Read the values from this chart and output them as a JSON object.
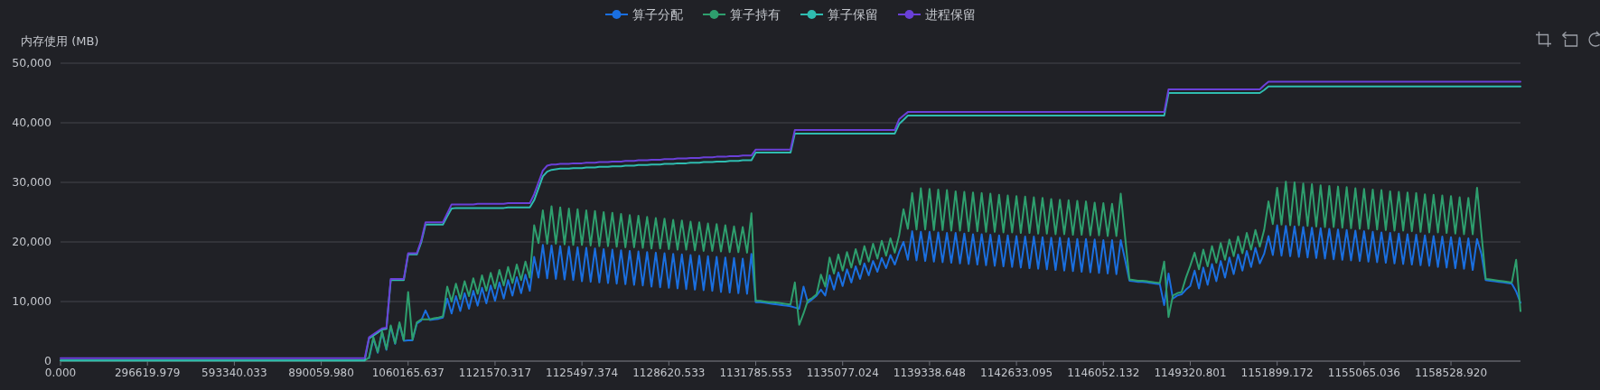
{
  "chart_data": {
    "type": "line",
    "ylabel": "内存使用 (MB)",
    "ylim": [
      0,
      50000
    ],
    "yticks": [
      0,
      {
        "value": 10000,
        "label": "10,000"
      },
      {
        "value": 20000,
        "label": "20,000"
      },
      {
        "value": 30000,
        "label": "30,000"
      },
      {
        "value": 40000,
        "label": "40,000"
      },
      {
        "value": 50000,
        "label": "50,000"
      }
    ],
    "grid": "y",
    "legend": "top",
    "categories": [
      "0.000",
      null,
      null,
      null,
      null,
      null,
      null,
      null,
      null,
      null,
      null,
      null,
      null,
      null,
      null,
      null,
      null,
      null,
      null,
      null,
      "296619.979",
      null,
      null,
      null,
      null,
      null,
      null,
      null,
      null,
      null,
      null,
      null,
      null,
      null,
      null,
      null,
      null,
      null,
      null,
      null,
      "593340.033",
      null,
      null,
      null,
      null,
      null,
      null,
      null,
      null,
      null,
      null,
      null,
      null,
      null,
      null,
      null,
      null,
      null,
      null,
      null,
      "890059.980",
      null,
      null,
      null,
      null,
      null,
      null,
      null,
      null,
      null,
      null,
      null,
      null,
      null,
      null,
      null,
      null,
      null,
      null,
      null,
      "1060165.637",
      null,
      null,
      null,
      null,
      null,
      null,
      null,
      null,
      null,
      null,
      null,
      null,
      null,
      null,
      null,
      null,
      null,
      null,
      null,
      "1121570.317",
      null,
      null,
      null,
      null,
      null,
      null,
      null,
      null,
      null,
      null,
      null,
      null,
      null,
      null,
      null,
      null,
      null,
      null,
      null,
      "1125497.374",
      null,
      null,
      null,
      null,
      null,
      null,
      null,
      null,
      null,
      null,
      null,
      null,
      null,
      null,
      null,
      null,
      null,
      null,
      null,
      "1128620.533",
      null,
      null,
      null,
      null,
      null,
      null,
      null,
      null,
      null,
      null,
      null,
      null,
      null,
      null,
      null,
      null,
      null,
      null,
      null,
      "1131785.553",
      null,
      null,
      null,
      null,
      null,
      null,
      null,
      null,
      null,
      null,
      null,
      null,
      null,
      null,
      null,
      null,
      null,
      null,
      null,
      "1135077.024",
      null,
      null,
      null,
      null,
      null,
      null,
      null,
      null,
      null,
      null,
      null,
      null,
      null,
      null,
      null,
      null,
      null,
      null,
      null,
      "1139338.648",
      null,
      null,
      null,
      null,
      null,
      null,
      null,
      null,
      null,
      null,
      null,
      null,
      null,
      null,
      null,
      null,
      null,
      null,
      null,
      "1142633.095",
      null,
      null,
      null,
      null,
      null,
      null,
      null,
      null,
      null,
      null,
      null,
      null,
      null,
      null,
      null,
      null,
      null,
      null,
      null,
      "1146052.132",
      null,
      null,
      null,
      null,
      null,
      null,
      null,
      null,
      null,
      null,
      null,
      null,
      null,
      null,
      null,
      null,
      null,
      null,
      null,
      "1149320.801",
      null,
      null,
      null,
      null,
      null,
      null,
      null,
      null,
      null,
      null,
      null,
      null,
      null,
      null,
      null,
      null,
      null,
      null,
      null,
      "1151899.172",
      null,
      null,
      null,
      null,
      null,
      null,
      null,
      null,
      null,
      null,
      null,
      null,
      null,
      null,
      null,
      null,
      null,
      null,
      null,
      "1155065.036",
      null,
      null,
      null,
      null,
      null,
      null,
      null,
      null,
      null,
      null,
      null,
      null,
      null,
      null,
      null,
      null,
      null,
      null,
      null,
      "1158528.920",
      null,
      null,
      null,
      null,
      null,
      null,
      null,
      null,
      null,
      null,
      null,
      null,
      null,
      null,
      null,
      null
    ],
    "series": [
      {
        "name": "算子分配",
        "color": "#1a6fe0",
        "values": [
          null,
          null,
          null,
          null,
          null,
          null,
          null,
          null,
          null,
          null,
          null,
          null,
          null,
          null,
          null,
          null,
          null,
          null,
          null,
          null,
          null,
          null,
          null,
          null,
          null,
          null,
          null,
          null,
          null,
          null,
          null,
          null,
          null,
          null,
          null,
          null,
          null,
          null,
          null,
          null,
          null,
          null,
          null,
          null,
          null,
          null,
          null,
          null,
          null,
          null,
          null,
          null,
          null,
          null,
          null,
          null,
          null,
          null,
          null,
          null,
          null,
          null,
          null,
          null,
          null,
          null,
          null,
          null,
          null,
          null,
          null,
          500,
          3800,
          1400,
          4800,
          1900,
          5800,
          2900,
          6300,
          3400,
          3500,
          3500,
          6300,
          6800,
          8500,
          6900,
          7000,
          7100,
          7300,
          10500,
          8000,
          10900,
          8400,
          11400,
          8800,
          11800,
          9300,
          12300,
          9700,
          12700,
          10100,
          13200,
          10500,
          13600,
          11000,
          14100,
          11400,
          14500,
          11800,
          17500,
          14000,
          19500,
          13900,
          19400,
          13800,
          19300,
          13700,
          19200,
          13600,
          19100,
          13400,
          19000,
          13300,
          18900,
          13200,
          18800,
          13100,
          18700,
          13000,
          18600,
          12900,
          18500,
          12800,
          18400,
          12700,
          18300,
          12500,
          18200,
          12400,
          18100,
          12300,
          18000,
          12200,
          17900,
          12100,
          17800,
          12000,
          17700,
          11900,
          17600,
          11800,
          17500,
          11600,
          17400,
          11500,
          17300,
          11400,
          17200,
          11300,
          18000,
          9900,
          9900,
          9800,
          9700,
          9600,
          9500,
          9400,
          9300,
          9200,
          9000,
          8800,
          12500,
          9800,
          10400,
          11000,
          12000,
          11000,
          14400,
          12000,
          14900,
          12600,
          15400,
          13200,
          15900,
          13800,
          16400,
          14400,
          16800,
          15000,
          17300,
          15600,
          17800,
          16200,
          18300,
          20000,
          17000,
          21800,
          16900,
          21700,
          16800,
          21700,
          16700,
          21600,
          16600,
          21500,
          16500,
          21500,
          16400,
          21400,
          16300,
          21300,
          16200,
          21300,
          16100,
          21200,
          16000,
          21100,
          15900,
          21100,
          15800,
          21000,
          15700,
          20900,
          15600,
          20900,
          15500,
          20800,
          15400,
          20700,
          15300,
          20700,
          15200,
          20600,
          15100,
          20500,
          15000,
          20500,
          14900,
          20400,
          14800,
          20300,
          14700,
          20300,
          14600,
          20300,
          17000,
          13500,
          13400,
          13300,
          13300,
          13200,
          13100,
          13000,
          12900,
          9400,
          14700,
          10500,
          11000,
          11200,
          12000,
          12600,
          15200,
          12200,
          15700,
          12800,
          16300,
          13400,
          16800,
          14000,
          17400,
          14600,
          17900,
          15200,
          18500,
          15800,
          19000,
          16400,
          18000,
          21000,
          17800,
          22800,
          17700,
          22700,
          17600,
          22600,
          17500,
          22500,
          17400,
          22400,
          17300,
          22300,
          17200,
          22200,
          17100,
          22100,
          17000,
          22000,
          16900,
          21900,
          16800,
          21800,
          16700,
          21700,
          16600,
          21600,
          16500,
          21500,
          16400,
          21400,
          16300,
          21300,
          16200,
          21200,
          16100,
          21100,
          16000,
          21000,
          15800,
          20900,
          15700,
          20800,
          15600,
          20700,
          15500,
          20600,
          15300,
          20500,
          18000,
          13600,
          13500,
          13400,
          13300,
          13200,
          13100,
          13000,
          11700,
          9800
        ]
      },
      {
        "name": "算子持有",
        "color": "#2e9f6e",
        "values": [
          100,
          100,
          100,
          100,
          100,
          100,
          100,
          100,
          100,
          100,
          100,
          100,
          100,
          100,
          100,
          100,
          100,
          100,
          100,
          100,
          100,
          100,
          100,
          100,
          100,
          100,
          100,
          100,
          100,
          100,
          100,
          100,
          100,
          100,
          100,
          100,
          100,
          100,
          100,
          100,
          100,
          100,
          100,
          100,
          100,
          100,
          100,
          100,
          100,
          100,
          100,
          100,
          100,
          100,
          100,
          100,
          100,
          100,
          100,
          100,
          100,
          100,
          100,
          100,
          100,
          100,
          100,
          100,
          100,
          100,
          100,
          600,
          4000,
          1500,
          5000,
          2000,
          6000,
          3000,
          6500,
          3500,
          11600,
          3600,
          6500,
          7000,
          7000,
          7000,
          7200,
          7300,
          7500,
          12500,
          10000,
          13000,
          10400,
          13400,
          10900,
          13900,
          11300,
          14400,
          11800,
          14800,
          12200,
          15300,
          12700,
          15800,
          13100,
          16200,
          13600,
          16700,
          14000,
          22800,
          19800,
          25300,
          19700,
          26000,
          19700,
          25800,
          19600,
          25600,
          19500,
          25500,
          19500,
          25300,
          19400,
          25200,
          19300,
          25000,
          19300,
          24900,
          19200,
          24700,
          19100,
          24500,
          19100,
          24400,
          19000,
          24200,
          18900,
          24000,
          18900,
          23900,
          18800,
          23700,
          18700,
          23600,
          18700,
          23400,
          18600,
          23300,
          18500,
          23100,
          18500,
          23000,
          18400,
          22800,
          18300,
          22600,
          18300,
          22500,
          18200,
          24800,
          10100,
          10100,
          10000,
          9900,
          9900,
          9800,
          9700,
          9600,
          9500,
          13200,
          6100,
          8000,
          10200,
          10600,
          11200,
          14500,
          12500,
          17400,
          14700,
          17900,
          15200,
          18300,
          15700,
          18800,
          16200,
          19300,
          16700,
          19700,
          17200,
          20200,
          17700,
          20600,
          18200,
          21100,
          25500,
          22200,
          28200,
          22100,
          29000,
          22100,
          28900,
          22000,
          28800,
          22000,
          28700,
          21900,
          28500,
          21900,
          28400,
          21800,
          28300,
          21800,
          28200,
          21700,
          28100,
          21700,
          27900,
          21600,
          27800,
          21600,
          27700,
          21500,
          27600,
          21500,
          27500,
          21400,
          27400,
          21400,
          27200,
          21300,
          27100,
          21300,
          27000,
          21200,
          26900,
          21200,
          26800,
          21100,
          26600,
          21100,
          26500,
          21000,
          26400,
          21000,
          28100,
          20900,
          13700,
          13600,
          13500,
          13500,
          13400,
          13300,
          13200,
          13100,
          16700,
          7400,
          11000,
          11400,
          11600,
          14000,
          16000,
          18200,
          15400,
          18700,
          15900,
          19300,
          16500,
          19800,
          17000,
          20400,
          17600,
          20900,
          18100,
          21500,
          18700,
          22000,
          19200,
          22000,
          26800,
          23000,
          29100,
          22900,
          30100,
          22800,
          30000,
          22800,
          29800,
          22700,
          29700,
          22600,
          29500,
          22500,
          29400,
          22500,
          29300,
          22400,
          29200,
          22300,
          29000,
          22200,
          28900,
          22200,
          28800,
          22100,
          28700,
          22000,
          28500,
          21900,
          28400,
          21900,
          28300,
          21800,
          28200,
          21700,
          28000,
          21600,
          27900,
          21600,
          27800,
          21500,
          27700,
          21400,
          27500,
          21300,
          27400,
          21300,
          29100,
          21500,
          13800,
          13700,
          13600,
          13500,
          13400,
          13300,
          13200,
          17000,
          8400
        ]
      },
      {
        "name": "算子保留",
        "color": "#2fbcb0",
        "values": [
          100,
          100,
          100,
          100,
          100,
          100,
          100,
          100,
          100,
          100,
          100,
          100,
          100,
          100,
          100,
          100,
          100,
          100,
          100,
          100,
          100,
          100,
          100,
          100,
          100,
          100,
          100,
          100,
          100,
          100,
          100,
          100,
          100,
          100,
          100,
          100,
          100,
          100,
          100,
          100,
          100,
          100,
          100,
          100,
          100,
          100,
          100,
          100,
          100,
          100,
          100,
          100,
          100,
          100,
          100,
          100,
          100,
          100,
          100,
          100,
          100,
          100,
          100,
          100,
          100,
          100,
          100,
          100,
          100,
          100,
          100,
          3800,
          4300,
          4800,
          5300,
          5400,
          13600,
          13600,
          13600,
          13600,
          17900,
          17900,
          17900,
          19900,
          22900,
          22900,
          22900,
          22900,
          22900,
          24300,
          25600,
          25700,
          25700,
          25700,
          25700,
          25700,
          25700,
          25700,
          25700,
          25700,
          25700,
          25700,
          25700,
          25800,
          25800,
          25800,
          25800,
          25800,
          25800,
          27000,
          29000,
          31000,
          31800,
          32100,
          32200,
          32300,
          32300,
          32300,
          32400,
          32400,
          32400,
          32500,
          32500,
          32500,
          32600,
          32600,
          32600,
          32700,
          32700,
          32700,
          32800,
          32800,
          32800,
          32900,
          32900,
          32900,
          33000,
          33000,
          33000,
          33100,
          33100,
          33100,
          33200,
          33200,
          33200,
          33300,
          33300,
          33300,
          33400,
          33400,
          33400,
          33500,
          33500,
          33500,
          33600,
          33600,
          33600,
          33700,
          33700,
          33700,
          35000,
          35000,
          35000,
          35000,
          35000,
          35000,
          35000,
          35000,
          35000,
          38200,
          38200,
          38200,
          38200,
          38200,
          38200,
          38200,
          38200,
          38200,
          38200,
          38200,
          38200,
          38200,
          38200,
          38200,
          38200,
          38200,
          38200,
          38200,
          38200,
          38200,
          38200,
          38200,
          38200,
          39800,
          40500,
          41200,
          41200,
          41200,
          41200,
          41200,
          41200,
          41200,
          41200,
          41200,
          41200,
          41200,
          41200,
          41200,
          41200,
          41200,
          41200,
          41200,
          41200,
          41200,
          41200,
          41200,
          41200,
          41200,
          41200,
          41200,
          41200,
          41200,
          41200,
          41200,
          41200,
          41200,
          41200,
          41200,
          41200,
          41200,
          41200,
          41200,
          41200,
          41200,
          41200,
          41200,
          41200,
          41200,
          41200,
          41200,
          41200,
          41200,
          41200,
          41200,
          41200,
          41200,
          41200,
          41200,
          41200,
          41200,
          41200,
          41200,
          41200,
          41200,
          41200,
          45000,
          45000,
          45000,
          45000,
          45000,
          45000,
          45000,
          45000,
          45000,
          45000,
          45000,
          45000,
          45000,
          45000,
          45000,
          45000,
          45000,
          45000,
          45000,
          45000,
          45000,
          45000,
          45500,
          46100,
          46100,
          46100,
          46100,
          46100,
          46100,
          46100,
          46100,
          46100,
          46100,
          46100,
          46100,
          46100,
          46100,
          46100,
          46100,
          46100,
          46100,
          46100,
          46100,
          46100,
          46100,
          46100,
          46100,
          46100,
          46100,
          46100,
          46100,
          46100,
          46100,
          46100,
          46100,
          46100,
          46100,
          46100,
          46100,
          46100,
          46100,
          46100,
          46100,
          46100,
          46100,
          46100,
          46100,
          46100,
          46100,
          46100,
          46100,
          46100,
          46100,
          46100,
          46100,
          46100,
          46100,
          46100,
          46100,
          46100,
          46100,
          46100
        ]
      },
      {
        "name": "进程保留",
        "color": "#6a40d8",
        "values": [
          500,
          500,
          500,
          500,
          500,
          500,
          500,
          500,
          500,
          500,
          500,
          500,
          500,
          500,
          500,
          500,
          500,
          500,
          500,
          500,
          500,
          500,
          500,
          500,
          500,
          500,
          500,
          500,
          500,
          500,
          500,
          500,
          500,
          500,
          500,
          500,
          500,
          500,
          500,
          500,
          500,
          500,
          500,
          500,
          500,
          500,
          500,
          500,
          500,
          500,
          500,
          500,
          500,
          500,
          500,
          500,
          500,
          500,
          500,
          500,
          500,
          500,
          500,
          500,
          500,
          500,
          500,
          500,
          500,
          500,
          500,
          4000,
          4500,
          5000,
          5500,
          5600,
          13800,
          13800,
          13800,
          13800,
          18100,
          18100,
          18100,
          20200,
          23300,
          23300,
          23300,
          23300,
          23300,
          24800,
          26300,
          26300,
          26300,
          26300,
          26300,
          26300,
          26400,
          26400,
          26400,
          26400,
          26400,
          26400,
          26400,
          26500,
          26500,
          26500,
          26500,
          26500,
          26500,
          28000,
          30000,
          32000,
          32800,
          33000,
          33000,
          33100,
          33100,
          33100,
          33200,
          33200,
          33200,
          33300,
          33300,
          33300,
          33400,
          33400,
          33400,
          33500,
          33500,
          33500,
          33600,
          33600,
          33600,
          33700,
          33700,
          33700,
          33800,
          33800,
          33800,
          33900,
          33900,
          33900,
          34000,
          34000,
          34000,
          34100,
          34100,
          34100,
          34200,
          34200,
          34200,
          34300,
          34300,
          34300,
          34400,
          34400,
          34400,
          34500,
          34500,
          34500,
          35500,
          35500,
          35500,
          35500,
          35500,
          35500,
          35500,
          35500,
          35500,
          38800,
          38800,
          38800,
          38800,
          38800,
          38800,
          38800,
          38800,
          38800,
          38800,
          38800,
          38800,
          38800,
          38800,
          38800,
          38800,
          38800,
          38800,
          38800,
          38800,
          38800,
          38800,
          38800,
          38800,
          40600,
          41200,
          41800,
          41800,
          41800,
          41800,
          41800,
          41800,
          41800,
          41800,
          41800,
          41800,
          41800,
          41800,
          41800,
          41800,
          41800,
          41800,
          41800,
          41800,
          41800,
          41800,
          41800,
          41800,
          41800,
          41800,
          41800,
          41800,
          41800,
          41800,
          41800,
          41800,
          41800,
          41800,
          41800,
          41800,
          41800,
          41800,
          41800,
          41800,
          41800,
          41800,
          41800,
          41800,
          41800,
          41800,
          41800,
          41800,
          41800,
          41800,
          41800,
          41800,
          41800,
          41800,
          41800,
          41800,
          41800,
          41800,
          41800,
          41800,
          41800,
          41800,
          45600,
          45600,
          45600,
          45600,
          45600,
          45600,
          45600,
          45600,
          45600,
          45600,
          45600,
          45600,
          45600,
          45600,
          45600,
          45600,
          45600,
          45600,
          45600,
          45600,
          45600,
          45600,
          46300,
          46900,
          46900,
          46900,
          46900,
          46900,
          46900,
          46900,
          46900,
          46900,
          46900,
          46900,
          46900,
          46900,
          46900,
          46900,
          46900,
          46900,
          46900,
          46900,
          46900,
          46900,
          46900,
          46900,
          46900,
          46900,
          46900,
          46900,
          46900,
          46900,
          46900,
          46900,
          46900,
          46900,
          46900,
          46900,
          46900,
          46900,
          46900,
          46900,
          46900,
          46900,
          46900,
          46900,
          46900,
          46900,
          46900,
          46900,
          46900,
          46900,
          46900,
          46900,
          46900,
          46900,
          46900,
          46900,
          46900,
          46900,
          46900,
          46900
        ]
      }
    ]
  }
}
